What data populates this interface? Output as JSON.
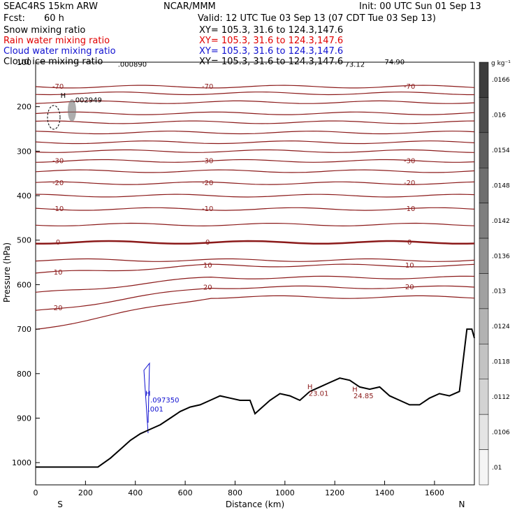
{
  "header": {
    "model": "SEAC4RS 15km ARW",
    "org": "NCAR/MMM",
    "init": "Init: 00 UTC Sun 01 Sep 13",
    "fcst_label": "Fcst:",
    "fcst_value": "60 h",
    "valid": "Valid: 12 UTC Tue 03 Sep 13 (07 CDT Tue 03 Sep 13)"
  },
  "fields": [
    {
      "name": "Snow mixing ratio",
      "xy": "XY= 105.3, 31.6 to 124.3,147.6",
      "color": "#000000"
    },
    {
      "name": "Rain water mixing ratio",
      "xy": "XY= 105.3, 31.6 to 124.3,147.6",
      "color": "#e00000"
    },
    {
      "name": "Cloud water mixing ratio",
      "xy": "XY= 105.3, 31.6 to 124.3,147.6",
      "color": "#1010d0"
    },
    {
      "name": "Cloud ice mixing ratio",
      "xy": "XY= 105.3, 31.6 to 124.3,147.6",
      "color": "#000000"
    }
  ],
  "chart_data": {
    "type": "line",
    "xlabel": "Distance (km)",
    "ylabel": "Pressure (hPa)",
    "xlim": [
      0,
      1760
    ],
    "ylim": [
      1050,
      100
    ],
    "xticks": [
      "0",
      "200",
      "400",
      "600",
      "800",
      "1000",
      "1200",
      "1400",
      "1600"
    ],
    "yticks": [
      "100",
      "200",
      "300",
      "400",
      "500",
      "600",
      "700",
      "800",
      "900",
      "1000"
    ],
    "direction_left": "S",
    "direction_right": "N",
    "contour_color": "#8b1a1a",
    "terrain_color": "#000000",
    "isotherms_c": [
      {
        "value": -70,
        "label": "-70",
        "p": 155
      },
      {
        "value": -65,
        "label": "",
        "p": 170
      },
      {
        "value": -60,
        "label": "",
        "p": 190
      },
      {
        "value": -55,
        "label": "",
        "p": 215
      },
      {
        "value": -50,
        "label": "",
        "p": 235
      },
      {
        "value": -45,
        "label": "",
        "p": 258
      },
      {
        "value": -40,
        "label": "",
        "p": 280
      },
      {
        "value": -35,
        "label": "",
        "p": 300
      },
      {
        "value": -30,
        "label": "-30",
        "p": 322
      },
      {
        "value": -25,
        "label": "",
        "p": 345
      },
      {
        "value": -20,
        "label": "-20",
        "p": 372
      },
      {
        "value": -15,
        "label": "",
        "p": 400
      },
      {
        "value": -10,
        "label": "-10",
        "p": 430
      },
      {
        "value": -5,
        "label": "",
        "p": 465
      },
      {
        "value": 0,
        "label": "0",
        "p": 505
      },
      {
        "value": 5,
        "label": "",
        "p": 545
      },
      {
        "value": 10,
        "label": "10",
        "p": 575
      },
      {
        "value": 15,
        "label": "",
        "p": 620
      },
      {
        "value": 20,
        "label": "20",
        "p": 660
      },
      {
        "value": 25,
        "label": "",
        "p": 700
      }
    ],
    "terrain_profile": {
      "x": [
        0,
        250,
        300,
        340,
        380,
        420,
        460,
        500,
        540,
        580,
        620,
        660,
        700,
        740,
        780,
        820,
        860,
        880,
        900,
        940,
        980,
        1020,
        1060,
        1100,
        1140,
        1180,
        1220,
        1260,
        1300,
        1340,
        1380,
        1420,
        1460,
        1500,
        1540,
        1580,
        1620,
        1660,
        1700,
        1730,
        1750,
        1760
      ],
      "p": [
        1010,
        1010,
        990,
        970,
        950,
        935,
        925,
        915,
        900,
        885,
        875,
        870,
        860,
        850,
        855,
        860,
        860,
        890,
        880,
        860,
        845,
        850,
        860,
        840,
        830,
        820,
        810,
        815,
        830,
        835,
        830,
        850,
        860,
        870,
        870,
        855,
        845,
        850,
        840,
        700,
        700,
        720
      ]
    },
    "annotations": [
      {
        "text": "H",
        "x": 100,
        "p": 180
      },
      {
        "text": ".002949",
        "x": 150,
        "p": 190
      },
      {
        "text": ".000890",
        "x": 330,
        "p": 110
      },
      {
        "text": "H",
        "x": 440,
        "p": 850
      },
      {
        "text": ".097350",
        "x": 460,
        "p": 865
      },
      {
        "text": ".001",
        "x": 450,
        "p": 885
      },
      {
        "text": "H",
        "x": 1090,
        "p": 835
      },
      {
        "text": "23.01",
        "x": 1095,
        "p": 850
      },
      {
        "text": "H",
        "x": 1270,
        "p": 840
      },
      {
        "text": "24.85",
        "x": 1275,
        "p": 855
      },
      {
        "text": "73.12",
        "x": 1240,
        "p": 110
      },
      {
        "text": "74.90",
        "x": 1400,
        "p": 105
      }
    ],
    "colorbar": {
      "units": "g kg⁻¹",
      "labels": [
        ".0166",
        ".016",
        ".0154",
        ".0148",
        ".0142",
        ".0136",
        ".013",
        ".0124",
        ".0118",
        ".0112",
        ".0106",
        ".01"
      ]
    }
  }
}
